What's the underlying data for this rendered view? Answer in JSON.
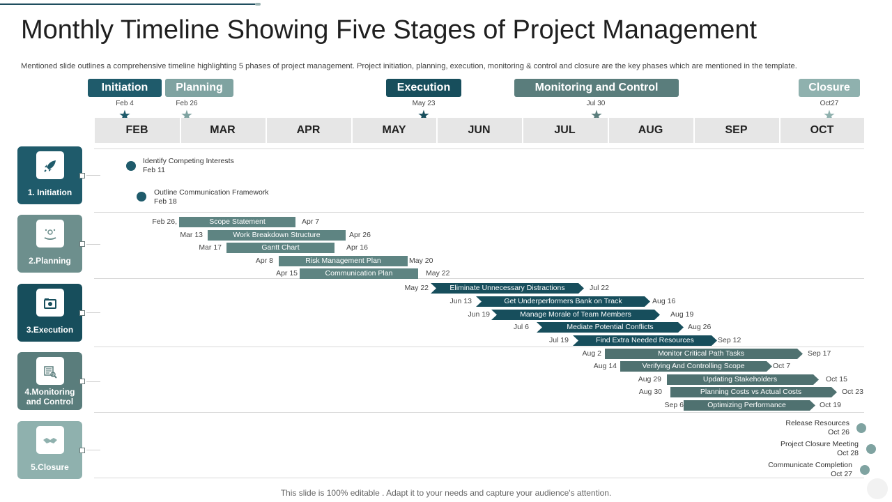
{
  "title": "Monthly Timeline Showing Five Stages of Project Management",
  "subtitle": "Mentioned slide outlines a comprehensive timeline highlighting 5 phases of project management. Project initiation, planning, execution, monitoring & control and closure are the key phases which are mentioned in the template.",
  "footer": "This slide is 100% editable . Adapt it to your needs and capture your audience's attention.",
  "colors": {
    "dark": "#1f5b6b",
    "mid": "#5a7d7c",
    "light": "#7fa3a1",
    "bar": "#5e8482",
    "arrow": "#1f5160"
  },
  "phases": [
    {
      "label": "Initiation",
      "date": "Feb 4",
      "star": "dark-star"
    },
    {
      "label": "Planning",
      "date": "Feb 26",
      "star": "light-star"
    },
    {
      "label": "Execution",
      "date": "May 23",
      "star": "dark-star"
    },
    {
      "label": "Monitoring and Control",
      "date": "Jul 30",
      "star": "mid-star"
    },
    {
      "label": "Closure",
      "date": "Oct27",
      "star": "light-star"
    }
  ],
  "months": [
    "FEB",
    "MAR",
    "APR",
    "MAY",
    "JUN",
    "JUL",
    "AUG",
    "SEP",
    "OCT"
  ],
  "cards": [
    {
      "label": "1. Initiation",
      "icon": "rocket-icon"
    },
    {
      "label": "2.Planning",
      "icon": "plan-icon"
    },
    {
      "label": "3.Execution",
      "icon": "camera-icon"
    },
    {
      "label": "4.Monitoring and Control",
      "label_line1": "4.Monitoring",
      "label_line2": "and Control",
      "icon": "monitor-icon"
    },
    {
      "label": "5.Closure",
      "icon": "handshake-icon"
    }
  ],
  "initiation_items": [
    {
      "name": "Identify Competing Interests",
      "date": "Feb 11"
    },
    {
      "name": "Outline Communication Framework",
      "date": "Feb 18"
    }
  ],
  "planning_bars": [
    {
      "label": "Scope Statement",
      "start": "Feb 26,",
      "end": "Apr 7"
    },
    {
      "label": "Work Breakdown Structure",
      "start": "Mar 13",
      "end": "Apr  26"
    },
    {
      "label": "Gantt Chart",
      "start": "Mar 17",
      "end": "Apr  16"
    },
    {
      "label": "Risk Management Plan",
      "start": "Apr 8",
      "end": "May 20"
    },
    {
      "label": "Communication Plan",
      "start": "Apr 15",
      "end": "May 22"
    }
  ],
  "execution_bars": [
    {
      "label": "Eliminate  Unnecessary Distractions",
      "start": "May 22",
      "end": "Jul 22"
    },
    {
      "label": "Get Underperformers Bank on Track",
      "start": "Jun 13",
      "end": "Aug 16"
    },
    {
      "label": "Manage Morale of Team Members",
      "start": "Jun 19",
      "end": "Aug 19"
    },
    {
      "label": "Mediate Potential  Conflicts",
      "start": "Jul 6",
      "end": "Aug 26"
    },
    {
      "label": "Find Extra Needed Resources",
      "start": "Jul 19",
      "end": "Sep 12"
    }
  ],
  "monitoring_bars": [
    {
      "label": "Monitor Critical Path Tasks",
      "start": "Aug 2",
      "end": "Sep 17"
    },
    {
      "label": "Verifying And Controlling Scope",
      "start": "Aug 14",
      "end": "Oct 7"
    },
    {
      "label": "Updating Stakeholders",
      "start": "Aug 29",
      "end": "Oct 15"
    },
    {
      "label": "Planning  Costs vs Actual Costs",
      "start": "Aug 30",
      "end": "Oct 23"
    },
    {
      "label": "Optimizing Performance",
      "start": "Sep 6",
      "end": "Oct 19"
    }
  ],
  "closure_items": [
    {
      "name": "Release Resources",
      "date": "Oct 26"
    },
    {
      "name": "Project Closure Meeting",
      "date": "Oct 28"
    },
    {
      "name": "Communicate  Completion",
      "date": "Oct 27"
    }
  ]
}
